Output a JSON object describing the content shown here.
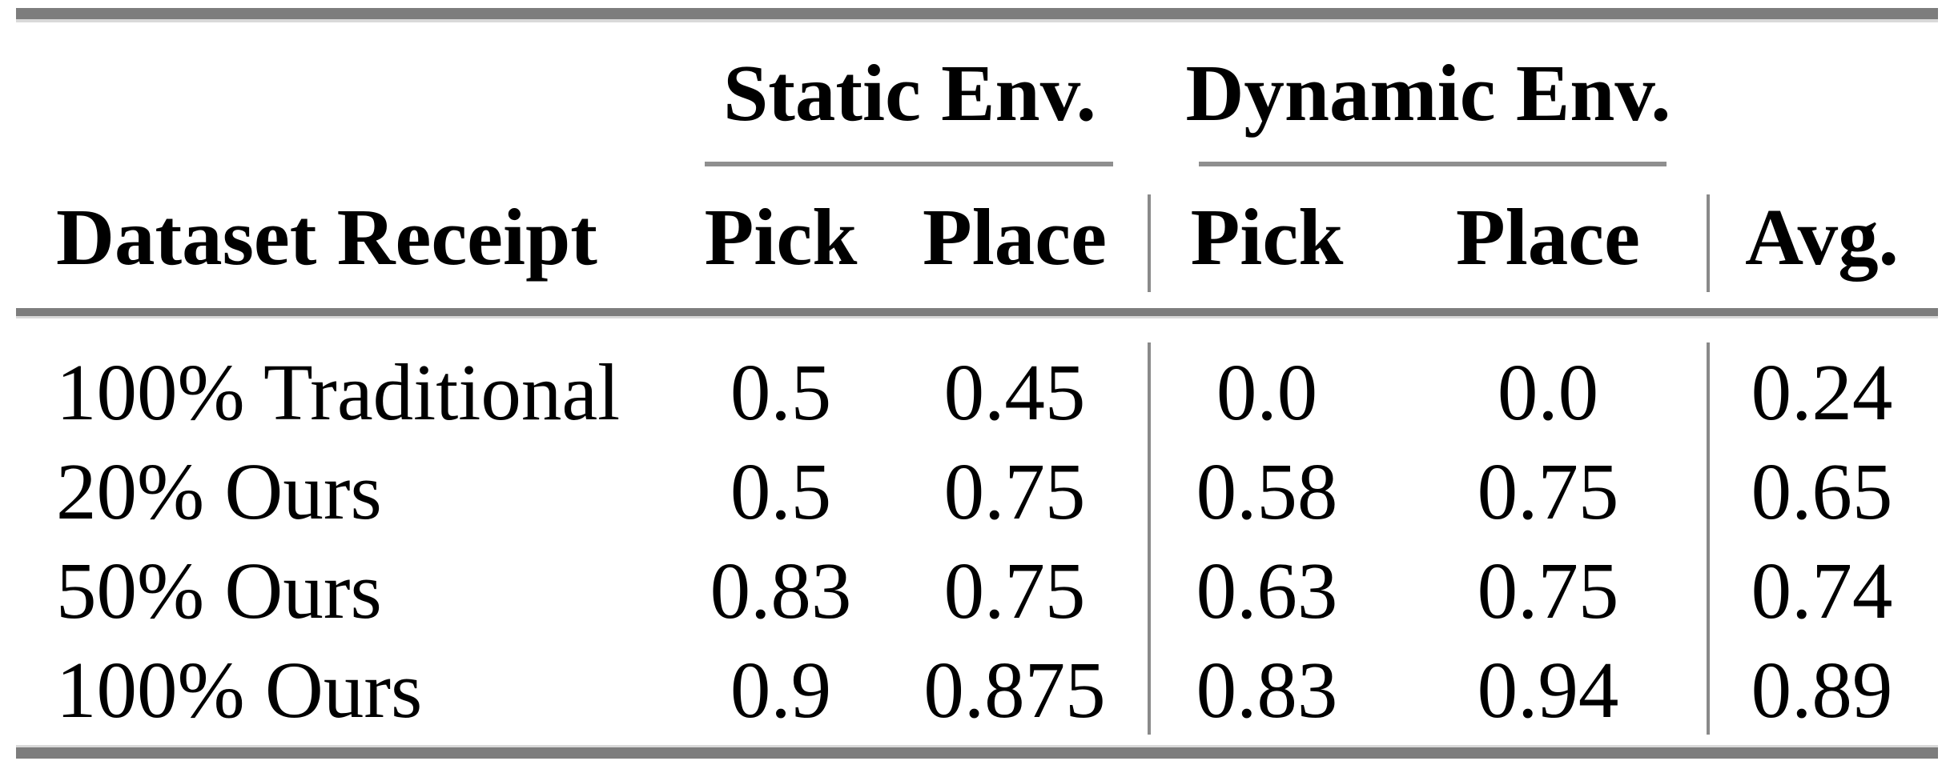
{
  "table": {
    "group_headers": [
      {
        "label": "Static Env."
      },
      {
        "label": "Dynamic Env."
      }
    ],
    "columns": [
      "Dataset Receipt",
      "Pick",
      "Place",
      "Pick",
      "Place",
      "Avg."
    ],
    "rows": [
      {
        "label": "100% Traditional",
        "values": [
          "0.5",
          "0.45",
          "0.0",
          "0.0",
          "0.24"
        ]
      },
      {
        "label": "20% Ours",
        "values": [
          "0.5",
          "0.75",
          "0.58",
          "0.75",
          "0.65"
        ]
      },
      {
        "label": "50% Ours",
        "values": [
          "0.83",
          "0.75",
          "0.63",
          "0.75",
          "0.74"
        ]
      },
      {
        "label": "100% Ours",
        "values": [
          "0.9",
          "0.875",
          "0.83",
          "0.94",
          "0.89"
        ]
      }
    ],
    "colors": {
      "rule_thick": "#7d7d7d",
      "rule_thin": "#8a8a8a",
      "text": "#000000",
      "background": "#ffffff"
    }
  },
  "chart_data": {
    "type": "table",
    "title": "",
    "column_groups": [
      {
        "label": "Static Env.",
        "columns": [
          "Pick",
          "Place"
        ]
      },
      {
        "label": "Dynamic Env.",
        "columns": [
          "Pick",
          "Place"
        ]
      }
    ],
    "columns": [
      "Dataset Receipt",
      "Static Env. Pick",
      "Static Env. Place",
      "Dynamic Env. Pick",
      "Dynamic Env. Place",
      "Avg."
    ],
    "rows": [
      [
        "100% Traditional",
        0.5,
        0.45,
        0.0,
        0.0,
        0.24
      ],
      [
        "20% Ours",
        0.5,
        0.75,
        0.58,
        0.75,
        0.65
      ],
      [
        "50% Ours",
        0.83,
        0.75,
        0.63,
        0.75,
        0.74
      ],
      [
        "100% Ours",
        0.9,
        0.875,
        0.83,
        0.94,
        0.89
      ]
    ]
  }
}
